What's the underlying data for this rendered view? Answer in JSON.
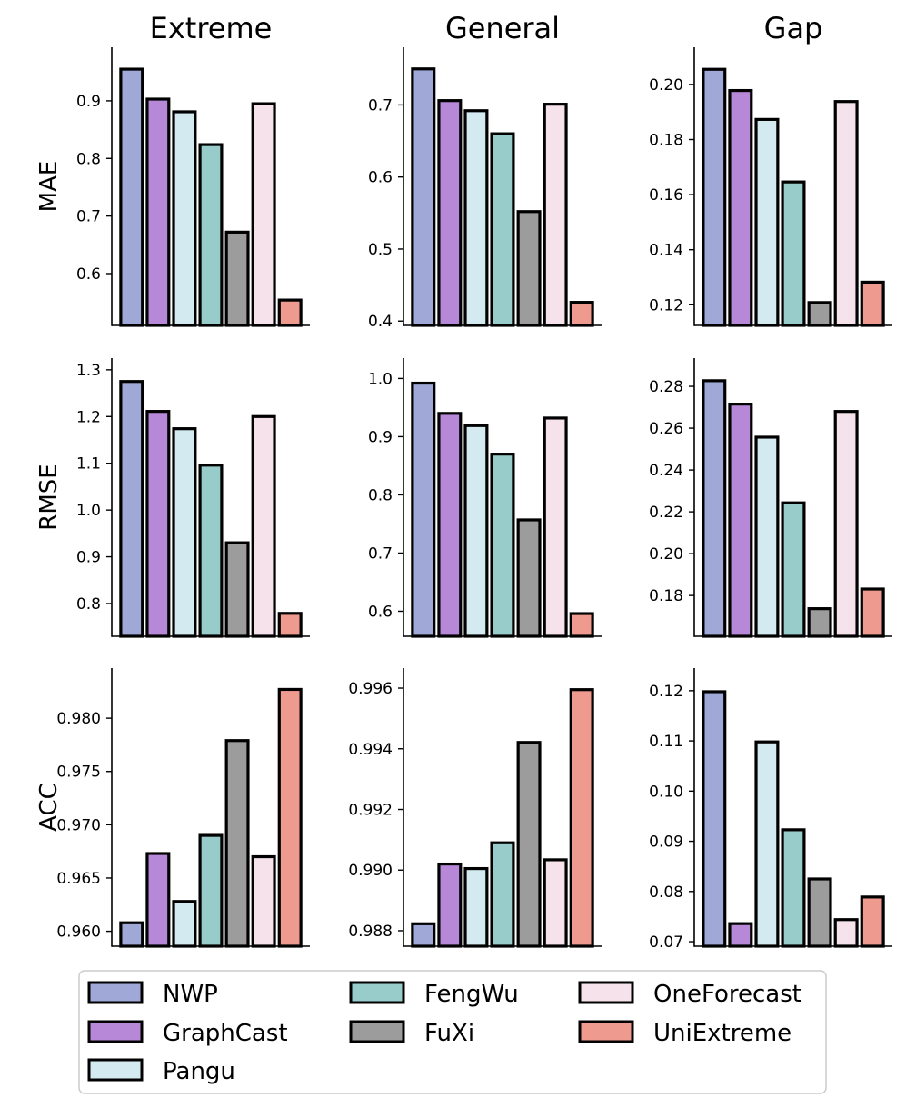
{
  "models": [
    "NWP",
    "GraphCast",
    "Pangu",
    "FengWu",
    "FuXi",
    "OneForecast",
    "UniExtreme"
  ],
  "colors": [
    "#9fa8d6",
    "#b888d8",
    "#d3eaf0",
    "#97cccb",
    "#9c9c9c",
    "#f5e2eb",
    "#ee9a8e"
  ],
  "legend": {
    "entries": [
      "NWP",
      "GraphCast",
      "Pangu",
      "FengWu",
      "FuXi",
      "OneForecast",
      "UniExtreme"
    ]
  },
  "chart_data": [
    {
      "type": "bar",
      "column": "Extreme",
      "ylabel": "MAE",
      "title": "Extreme",
      "categories": [
        "NWP",
        "GraphCast",
        "Pangu",
        "FengWu",
        "FuXi",
        "OneForecast",
        "UniExtreme"
      ],
      "values": [
        0.955,
        0.903,
        0.881,
        0.824,
        0.672,
        0.895,
        0.554
      ],
      "ylim": [
        0.51,
        0.993
      ],
      "ticks": [
        0.6,
        0.7,
        0.8,
        0.9
      ],
      "tick_labels": [
        "0.6",
        "0.7",
        "0.8",
        "0.9"
      ]
    },
    {
      "type": "bar",
      "column": "General",
      "ylabel": "",
      "title": "General",
      "categories": [
        "NWP",
        "GraphCast",
        "Pangu",
        "FengWu",
        "FuXi",
        "OneForecast",
        "UniExtreme"
      ],
      "values": [
        0.75,
        0.706,
        0.692,
        0.66,
        0.552,
        0.701,
        0.426
      ],
      "ylim": [
        0.394,
        0.78
      ],
      "ticks": [
        0.4,
        0.5,
        0.6,
        0.7
      ],
      "tick_labels": [
        "0.4",
        "0.5",
        "0.6",
        "0.7"
      ]
    },
    {
      "type": "bar",
      "column": "Gap",
      "ylabel": "",
      "title": "Gap",
      "categories": [
        "NWP",
        "GraphCast",
        "Pangu",
        "FengWu",
        "FuXi",
        "OneForecast",
        "UniExtreme"
      ],
      "values": [
        0.2055,
        0.1978,
        0.1873,
        0.1646,
        0.1208,
        0.1938,
        0.1282
      ],
      "ylim": [
        0.1125,
        0.2135
      ],
      "ticks": [
        0.12,
        0.14,
        0.16,
        0.18,
        0.2
      ],
      "tick_labels": [
        "0.12",
        "0.14",
        "0.16",
        "0.18",
        "0.20"
      ]
    },
    {
      "type": "bar",
      "column": "Extreme",
      "ylabel": "RMSE",
      "title": "",
      "categories": [
        "NWP",
        "GraphCast",
        "Pangu",
        "FengWu",
        "FuXi",
        "OneForecast",
        "UniExtreme"
      ],
      "values": [
        1.275,
        1.211,
        1.174,
        1.096,
        0.93,
        1.2,
        0.779
      ],
      "ylim": [
        0.73,
        1.325
      ],
      "ticks": [
        0.8,
        0.9,
        1.0,
        1.1,
        1.2,
        1.3
      ],
      "tick_labels": [
        "0.8",
        "0.9",
        "1.0",
        "1.1",
        "1.2",
        "1.3"
      ]
    },
    {
      "type": "bar",
      "column": "General",
      "ylabel": "",
      "title": "",
      "categories": [
        "NWP",
        "GraphCast",
        "Pangu",
        "FengWu",
        "FuXi",
        "OneForecast",
        "UniExtreme"
      ],
      "values": [
        0.992,
        0.94,
        0.919,
        0.87,
        0.757,
        0.932,
        0.596
      ],
      "ylim": [
        0.557,
        1.035
      ],
      "ticks": [
        0.6,
        0.7,
        0.8,
        0.9,
        1.0
      ],
      "tick_labels": [
        "0.6",
        "0.7",
        "0.8",
        "0.9",
        "1.0"
      ]
    },
    {
      "type": "bar",
      "column": "Gap",
      "ylabel": "",
      "title": "",
      "categories": [
        "NWP",
        "GraphCast",
        "Pangu",
        "FengWu",
        "FuXi",
        "OneForecast",
        "UniExtreme"
      ],
      "values": [
        0.2827,
        0.2715,
        0.2557,
        0.2243,
        0.1737,
        0.268,
        0.1831
      ],
      "ylim": [
        0.1605,
        0.2935
      ],
      "ticks": [
        0.18,
        0.2,
        0.22,
        0.24,
        0.26,
        0.28
      ],
      "tick_labels": [
        "0.18",
        "0.20",
        "0.22",
        "0.24",
        "0.26",
        "0.28"
      ]
    },
    {
      "type": "bar",
      "column": "Extreme",
      "ylabel": "ACC",
      "title": "",
      "categories": [
        "NWP",
        "GraphCast",
        "Pangu",
        "FengWu",
        "FuXi",
        "OneForecast",
        "UniExtreme"
      ],
      "values": [
        0.9608,
        0.9673,
        0.9628,
        0.969,
        0.9779,
        0.967,
        0.9827
      ],
      "ylim": [
        0.9586,
        0.9847
      ],
      "ticks": [
        0.96,
        0.965,
        0.97,
        0.975,
        0.98
      ],
      "tick_labels": [
        "0.960",
        "0.965",
        "0.970",
        "0.975",
        "0.980"
      ]
    },
    {
      "type": "bar",
      "column": "General",
      "ylabel": "",
      "title": "",
      "categories": [
        "NWP",
        "GraphCast",
        "Pangu",
        "FengWu",
        "FuXi",
        "OneForecast",
        "UniExtreme"
      ],
      "values": [
        0.98823,
        0.9902,
        0.99005,
        0.9909,
        0.99421,
        0.99034,
        0.99595
      ],
      "ylim": [
        0.98749,
        0.99666
      ],
      "ticks": [
        0.988,
        0.99,
        0.992,
        0.994,
        0.996
      ],
      "tick_labels": [
        "0.988",
        "0.990",
        "0.992",
        "0.994",
        "0.996"
      ]
    },
    {
      "type": "bar",
      "column": "Gap",
      "ylabel": "",
      "title": "",
      "categories": [
        "NWP",
        "GraphCast",
        "Pangu",
        "FengWu",
        "FuXi",
        "OneForecast",
        "UniExtreme"
      ],
      "values": [
        0.1198,
        0.0736,
        0.1098,
        0.0923,
        0.0825,
        0.0744,
        0.0789
      ],
      "ylim": [
        0.0691,
        0.1245
      ],
      "ticks": [
        0.07,
        0.08,
        0.09,
        0.1,
        0.11,
        0.12
      ],
      "tick_labels": [
        "0.07",
        "0.08",
        "0.09",
        "0.10",
        "0.11",
        "0.12"
      ]
    }
  ]
}
